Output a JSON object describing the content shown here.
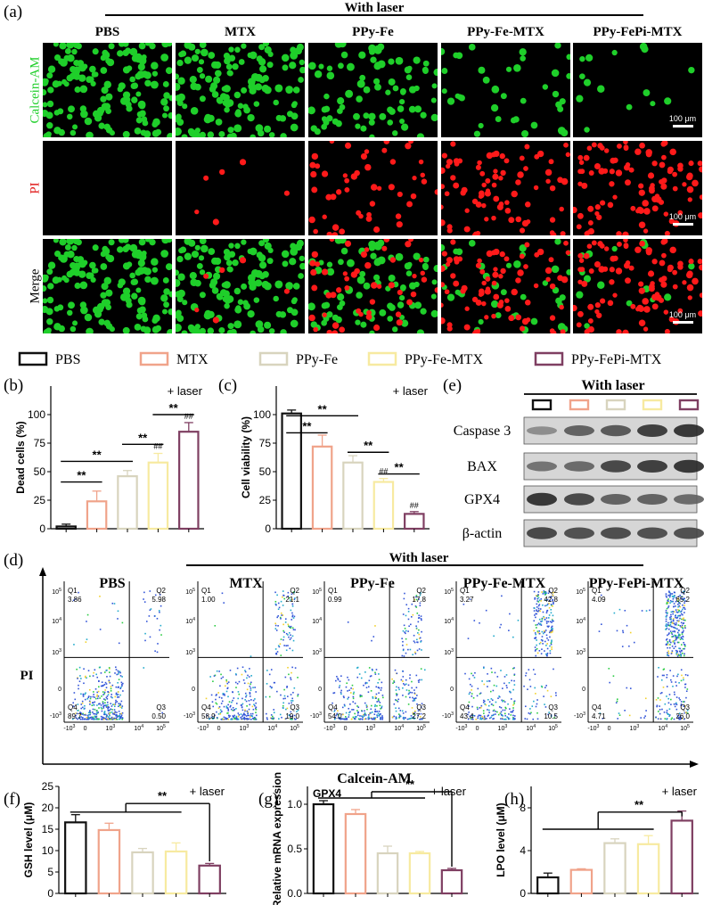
{
  "panels": {
    "a": "(a)",
    "b": "(b)",
    "c": "(c)",
    "d": "(d)",
    "e": "(e)",
    "f": "(f)",
    "g": "(g)",
    "h": "(h)"
  },
  "colors": {
    "PBS": "#111111",
    "MTX": "#f0a38a",
    "PPy-Fe": "#d8d4be",
    "PPy-Fe-MTX": "#f7eaa0",
    "PPy-FePi-MTX": "#7f3f62",
    "calcein": "#1fcf2a",
    "pi": "#ff1a1a"
  },
  "microscopy": {
    "header": "With laser",
    "groups": [
      "PBS",
      "MTX",
      "PPy-Fe",
      "PPy-Fe-MTX",
      "PPy-FePi-MTX"
    ],
    "rows": [
      "Calcein-AM",
      "PI",
      "Merge"
    ],
    "scale_bar": "100 μm",
    "live_fraction": [
      1.0,
      0.92,
      0.55,
      0.25,
      0.1
    ],
    "dead_fraction": [
      0.0,
      0.05,
      0.45,
      0.75,
      0.9
    ]
  },
  "legend": [
    "PBS",
    "MTX",
    "PPy-Fe",
    "PPy-Fe-MTX",
    "PPy-FePi-MTX"
  ],
  "chart_data": [
    {
      "id": "b",
      "type": "bar",
      "categories": [
        "PBS",
        "MTX",
        "PPy-Fe",
        "PPy-Fe-MTX",
        "PPy-FePi-MTX"
      ],
      "values": [
        2,
        24,
        46,
        58,
        85
      ],
      "errors": [
        2,
        9,
        5,
        8,
        8
      ],
      "ylabel": "Dead cells (%)",
      "ylim": [
        0,
        125
      ],
      "yticks": [
        "0",
        "25",
        "50",
        "75",
        "100"
      ],
      "note": "+ laser",
      "marks": {
        "sig": "**",
        "hash": "##"
      }
    },
    {
      "id": "c",
      "type": "bar",
      "categories": [
        "PBS",
        "MTX",
        "PPy-Fe",
        "PPy-Fe-MTX",
        "PPy-FePi-MTX"
      ],
      "values": [
        101,
        72,
        58,
        41,
        13
      ],
      "errors": [
        3,
        10,
        6,
        3,
        2
      ],
      "ylabel": "Cell viability (%)",
      "ylim": [
        0,
        125
      ],
      "yticks": [
        "0",
        "25",
        "50",
        "75",
        "100"
      ],
      "note": "+ laser",
      "marks": {
        "sig": "**",
        "hash": "##"
      }
    },
    {
      "id": "f",
      "type": "bar",
      "categories": [
        "PBS",
        "MTX",
        "PPy-Fe",
        "PPy-Fe-MTX",
        "PPy-FePi-MTX"
      ],
      "values": [
        16.6,
        14.8,
        9.6,
        9.8,
        6.5
      ],
      "errors": [
        1.8,
        1.6,
        0.9,
        2.0,
        0.5
      ],
      "ylabel": "GSH level (μM)",
      "ylim": [
        0,
        25
      ],
      "yticks": [
        "0",
        "5",
        "10",
        "15",
        "20",
        "25"
      ],
      "note": "+ laser",
      "marks": {
        "sig": "**"
      }
    },
    {
      "id": "g",
      "type": "bar",
      "categories": [
        "PBS",
        "MTX",
        "PPy-Fe",
        "PPy-Fe-MTX",
        "PPy-FePi-MTX"
      ],
      "values": [
        1.0,
        0.89,
        0.45,
        0.45,
        0.26
      ],
      "errors": [
        0.04,
        0.05,
        0.08,
        0.02,
        0.02
      ],
      "ylabel": "Relative mRNA expression",
      "ylim": [
        0,
        1.2
      ],
      "yticks": [
        "0.0",
        "0.5",
        "1.0"
      ],
      "note": "+ laser",
      "inner_title": "GPX4",
      "marks": {
        "sig": "**"
      }
    },
    {
      "id": "h",
      "type": "bar",
      "categories": [
        "PBS",
        "MTX",
        "PPy-Fe",
        "PPy-Fe-MTX",
        "PPy-FePi-MTX"
      ],
      "values": [
        1.5,
        2.2,
        4.7,
        4.6,
        6.8
      ],
      "errors": [
        0.4,
        0.1,
        0.4,
        0.8,
        0.9
      ],
      "ylabel": "LPO level (μM)",
      "ylim": [
        0,
        10
      ],
      "yticks": [
        "0",
        "4",
        "8"
      ],
      "note": "+ laser",
      "marks": {
        "sig": "**"
      }
    }
  ],
  "western": {
    "header": "With laser",
    "proteins": [
      "Caspase 3",
      "BAX",
      "GPX4",
      "β-actin"
    ],
    "intensity": [
      [
        0.35,
        0.6,
        0.65,
        0.8,
        0.85
      ],
      [
        0.5,
        0.55,
        0.75,
        0.8,
        0.85
      ],
      [
        0.85,
        0.75,
        0.6,
        0.6,
        0.55
      ],
      [
        0.75,
        0.7,
        0.72,
        0.7,
        0.7
      ]
    ]
  },
  "flow": {
    "header": "With laser",
    "groups": [
      "PBS",
      "MTX",
      "PPy-Fe",
      "PPy-Fe-MTX",
      "PPy-FePi-MTX"
    ],
    "ylabel": "PI",
    "xlabel": "Calcein-AM",
    "quadrants": [
      {
        "Q1": "3.86",
        "Q2": "5.98",
        "Q3": "0.50",
        "Q4": "89.7"
      },
      {
        "Q1": "1.00",
        "Q2": "21.1",
        "Q3": "19.0",
        "Q4": "58.9"
      },
      {
        "Q1": "0.99",
        "Q2": "17.8",
        "Q3": "27.2",
        "Q4": "54.0"
      },
      {
        "Q1": "3.27",
        "Q2": "42.8",
        "Q3": "10.5",
        "Q4": "43.4"
      },
      {
        "Q1": "4.09",
        "Q2": "65.2",
        "Q3": "26.0",
        "Q4": "4.71"
      }
    ],
    "q_labels": [
      "Q1",
      "Q2",
      "Q3",
      "Q4"
    ],
    "yticks": [
      "10^5",
      "10^4",
      "10^3",
      "0",
      "-10^3"
    ],
    "xticks": [
      "-10^3",
      "0",
      "10^3",
      "10^4",
      "10^5"
    ]
  }
}
